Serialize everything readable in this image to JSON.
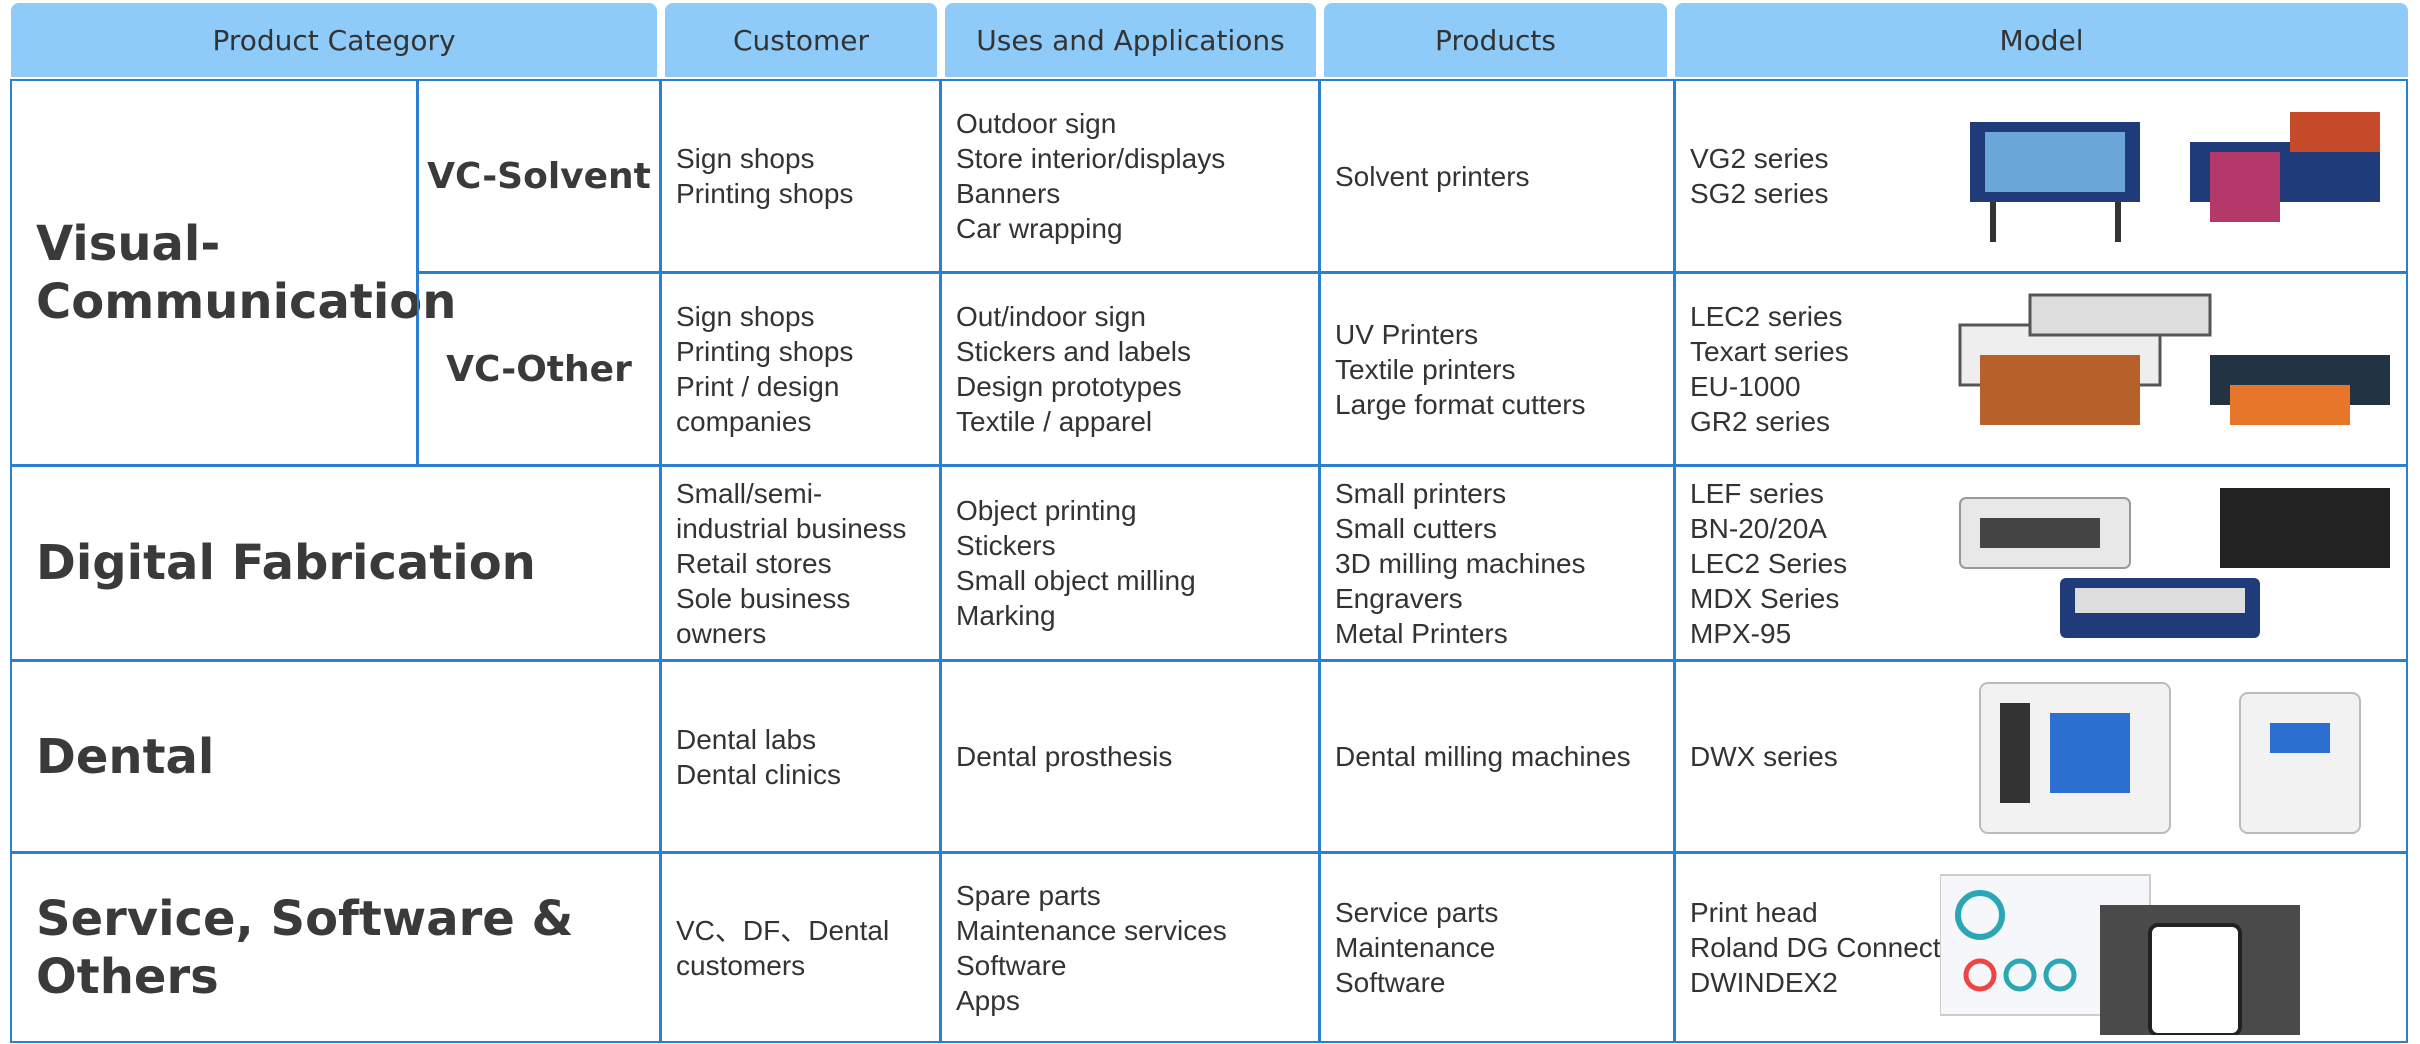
{
  "header": [
    "Product Category",
    "Customer",
    "Uses and Applications",
    "Products",
    "Model"
  ],
  "categories": [
    {
      "name": "Visual-Communication",
      "segments": [
        {
          "name": "VC-Solvent",
          "customer": [
            "Sign shops",
            "Printing shops"
          ],
          "uses": [
            "Outdoor sign",
            "Store interior/displays",
            "Banners",
            "Car wrapping"
          ],
          "products": [
            "Solvent printers"
          ],
          "model": [
            "VG2 series",
            "SG2 series"
          ]
        },
        {
          "name": "VC-Other",
          "customer": [
            "Sign shops",
            "Printing shops",
            "Print / design",
            "companies"
          ],
          "uses": [
            "Out/indoor sign",
            "Stickers and labels",
            "Design prototypes",
            "Textile / apparel"
          ],
          "products": [
            "UV Printers",
            "Textile printers",
            "Large format cutters"
          ],
          "model": [
            "LEC2 series",
            "Texart series",
            "EU-1000",
            "GR2 series"
          ]
        }
      ]
    },
    {
      "name": "Digital Fabrication",
      "segments": [
        {
          "customer": [
            "Small/semi-",
            "industrial business",
            "Retail stores",
            "Sole business",
            "owners"
          ],
          "uses": [
            "Object printing",
            "Stickers",
            "Small object milling",
            "Marking"
          ],
          "products": [
            "Small printers",
            "Small cutters",
            "3D milling machines",
            "Engravers",
            "Metal Printers"
          ],
          "model": [
            "LEF series",
            "BN-20/20A",
            "LEC2 Series",
            "MDX Series",
            "MPX-95"
          ]
        }
      ]
    },
    {
      "name": "Dental",
      "segments": [
        {
          "customer": [
            "Dental labs",
            "Dental clinics"
          ],
          "uses": [
            "Dental prosthesis"
          ],
          "products": [
            "Dental milling machines"
          ],
          "model": [
            "DWX series"
          ]
        }
      ]
    },
    {
      "name": "Service, Software & Others",
      "segments": [
        {
          "customer": [
            "VC、DF、Dental",
            "customers"
          ],
          "uses": [
            "Spare parts",
            "Maintenance services",
            "Software",
            "Apps"
          ],
          "products": [
            "Service parts",
            "Maintenance",
            "Software"
          ],
          "model": [
            "Print head",
            "Roland DG Connect",
            "DWINDEX2"
          ]
        }
      ]
    }
  ]
}
